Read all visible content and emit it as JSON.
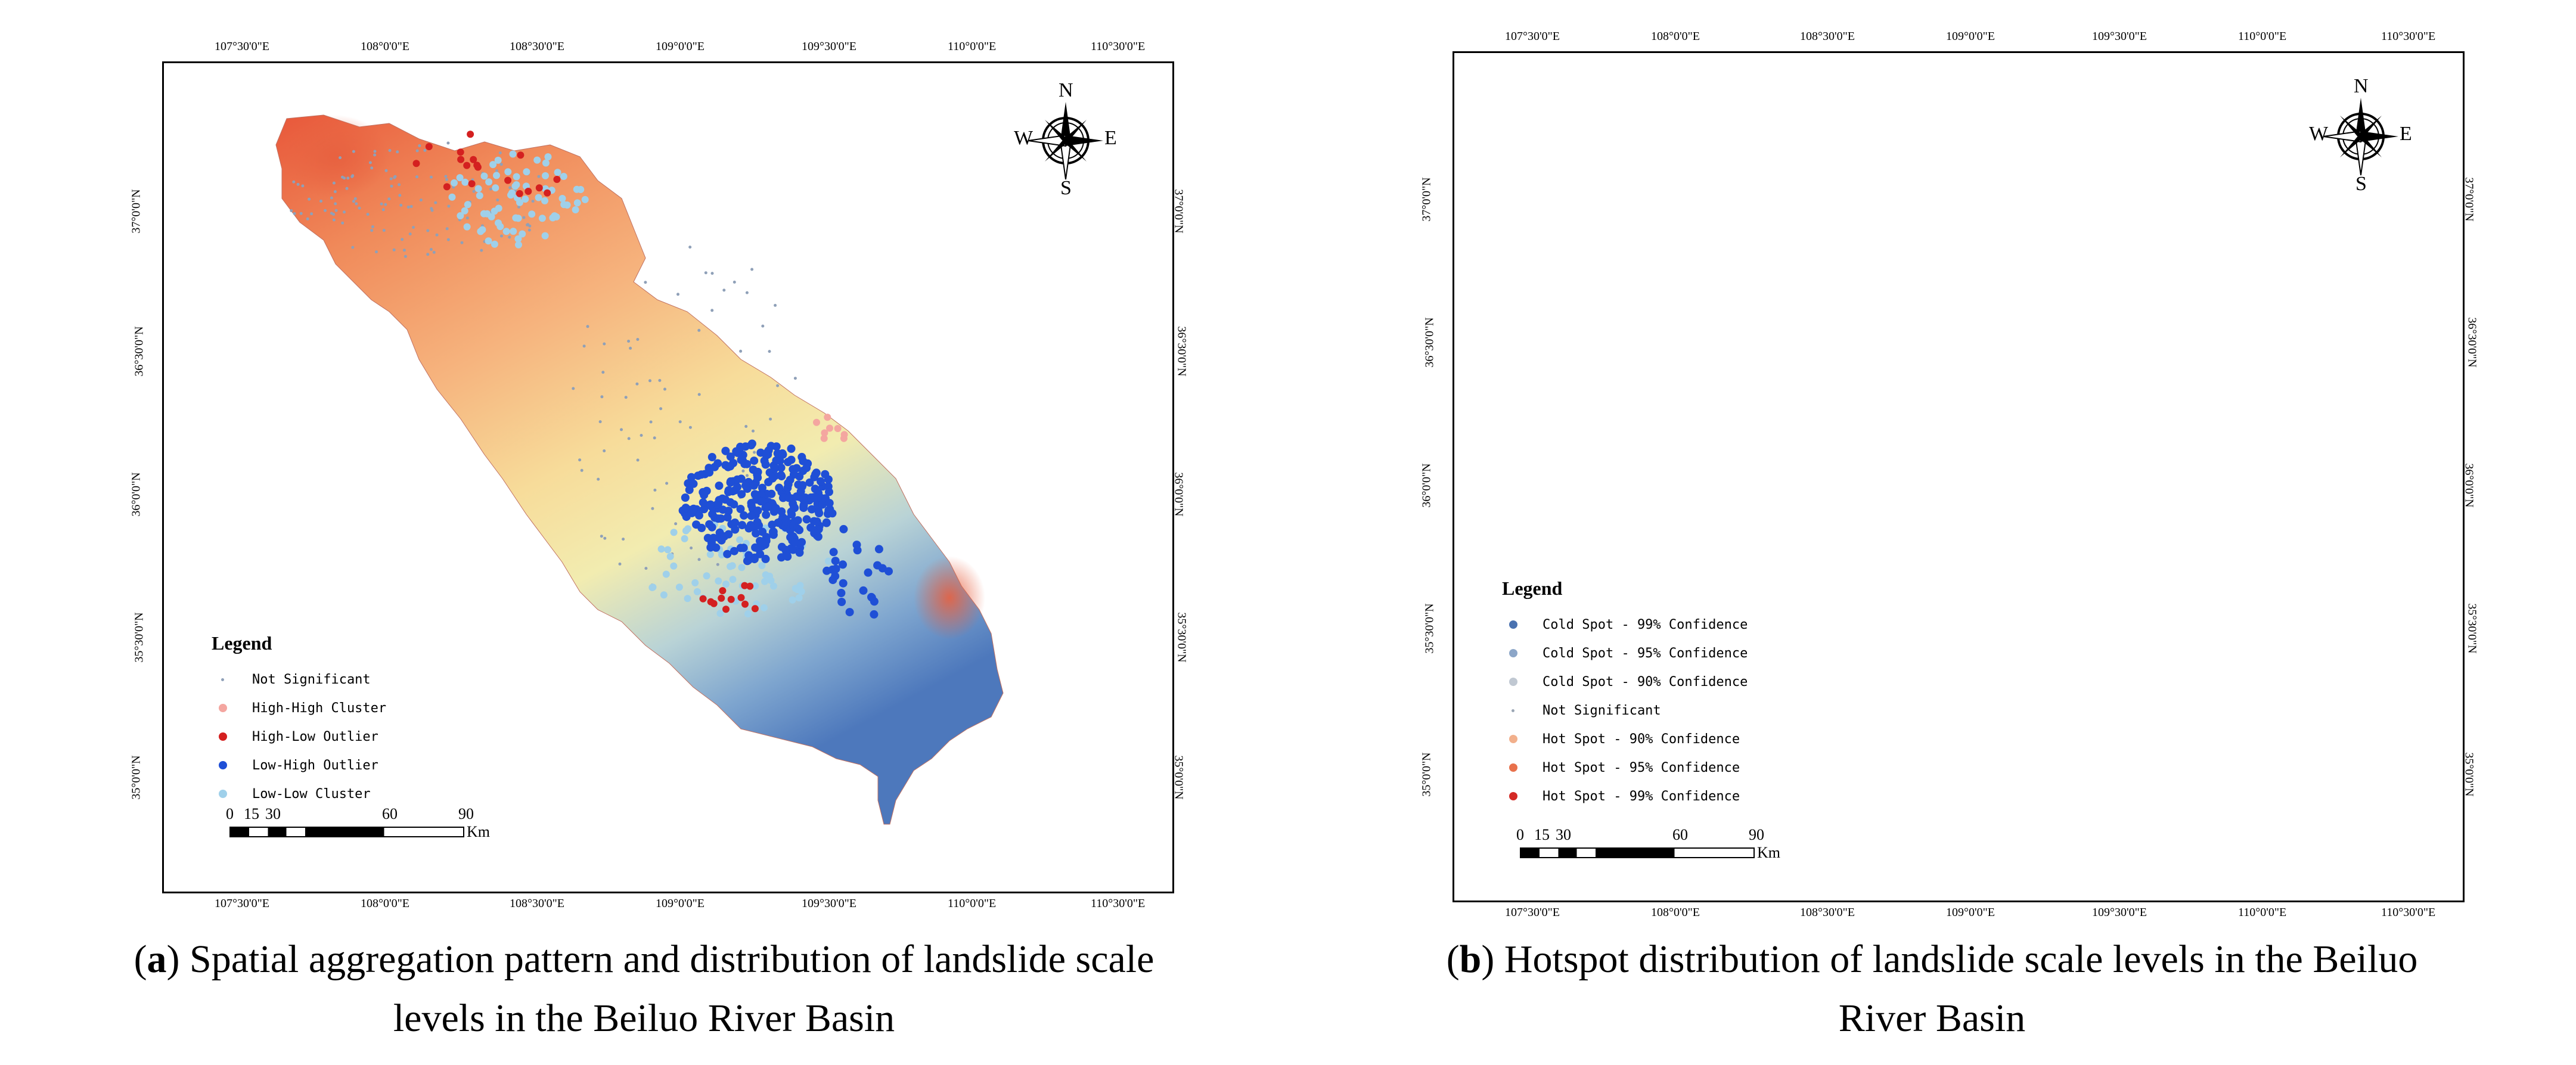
{
  "panels": [
    {
      "id": "a",
      "legend_title": "Legend",
      "legend_items": [
        {
          "label": "Not Significant",
          "color": "#8fa0b8",
          "small": true
        },
        {
          "label": "High-High Cluster",
          "color": "#f4a6a0",
          "small": false
        },
        {
          "label": "High-Low Outlier",
          "color": "#d42020",
          "small": false
        },
        {
          "label": "Low-High Outlier",
          "color": "#1f4fd6",
          "small": false
        },
        {
          "label": "Low-Low Cluster",
          "color": "#9fd0ea",
          "small": false
        }
      ],
      "caption_letter": "a",
      "caption_line1": " Spatial aggregation pattern and distribution of landslide scale",
      "caption_line2": "levels in the Beiluo River Basin"
    },
    {
      "id": "b",
      "legend_title": "Legend",
      "legend_items": [
        {
          "label": "Cold Spot - 99% Confidence",
          "color": "#4a72b0",
          "small": false
        },
        {
          "label": "Cold Spot - 95% Confidence",
          "color": "#8ca6c8",
          "small": false
        },
        {
          "label": "Cold Spot - 90% Confidence",
          "color": "#c0c8d2",
          "small": false
        },
        {
          "label": "Not Significant",
          "color": "#9aa6b4",
          "small": true
        },
        {
          "label": "Hot Spot - 90% Confidence",
          "color": "#f2b08c",
          "small": false
        },
        {
          "label": "Hot Spot - 95% Confidence",
          "color": "#e8714c",
          "small": false
        },
        {
          "label": "Hot Spot - 99% Confidence",
          "color": "#d42a26",
          "small": false
        }
      ],
      "caption_letter": "b",
      "caption_line1": " Hotspot distribution of landslide scale levels in the Beiluo",
      "caption_line2": "River Basin"
    }
  ],
  "x_ticks": [
    "107°30'0\"E",
    "108°0'0\"E",
    "108°30'0\"E",
    "109°0'0\"E",
    "109°30'0\"E",
    "110°0'0\"E",
    "110°30'0\"E"
  ],
  "y_ticks": [
    "37°0'0\"N",
    "36°30'0\"N",
    "36°0'0\"N",
    "35°30'0\"N",
    "35°0'0\"N"
  ],
  "scale": {
    "labels": [
      "0",
      "15",
      "30",
      "60",
      "90"
    ],
    "unit": "Km"
  },
  "compass": {
    "n": "N",
    "s": "S",
    "e": "E",
    "w": "W"
  }
}
